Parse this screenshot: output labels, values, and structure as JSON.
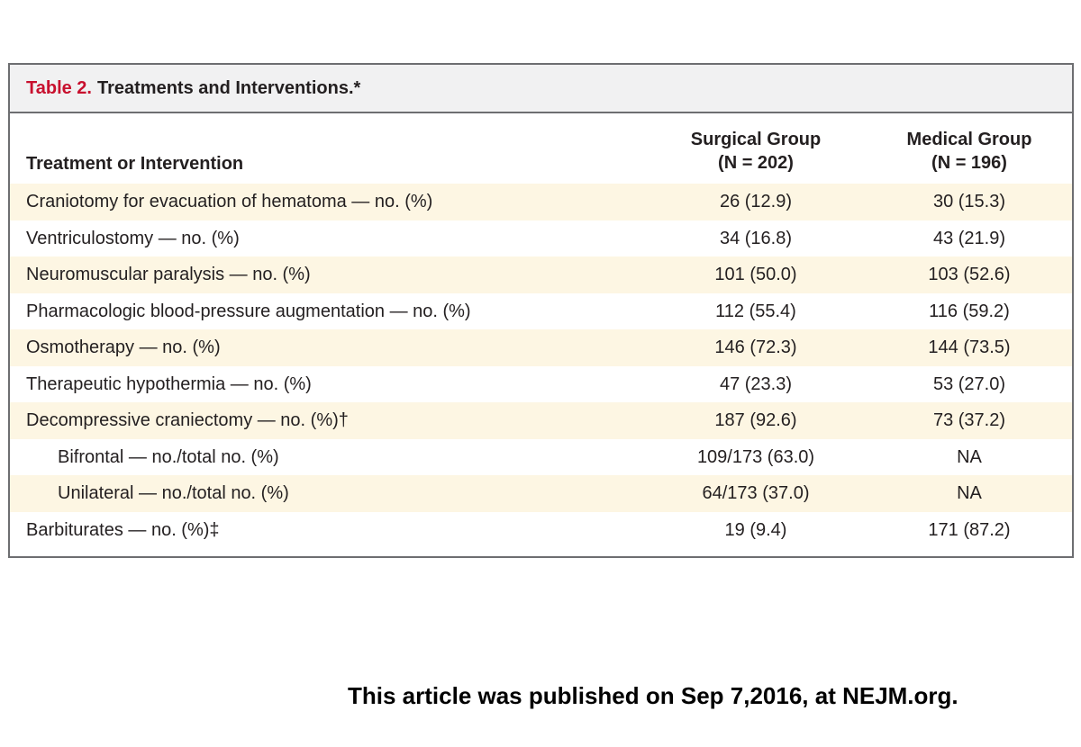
{
  "table": {
    "title_number": "Table 2.",
    "title_text": "Treatments and Interventions.*",
    "header": {
      "label": "Treatment or Intervention",
      "surgical_line1": "Surgical Group",
      "surgical_line2": "(N = 202)",
      "medical_line1": "Medical Group",
      "medical_line2": "(N = 196)"
    },
    "rows": [
      {
        "label": "Craniotomy for evacuation of hematoma — no. (%)",
        "surgical": "26 (12.9)",
        "medical": "30 (15.3)"
      },
      {
        "label": "Ventriculostomy — no. (%)",
        "surgical": "34 (16.8)",
        "medical": "43 (21.9)"
      },
      {
        "label": "Neuromuscular paralysis — no. (%)",
        "surgical": "101 (50.0)",
        "medical": "103 (52.6)"
      },
      {
        "label": "Pharmacologic blood-pressure augmentation — no. (%)",
        "surgical": "112 (55.4)",
        "medical": "116 (59.2)"
      },
      {
        "label": "Osmotherapy — no. (%)",
        "surgical": "146 (72.3)",
        "medical": "144 (73.5)"
      },
      {
        "label": "Therapeutic hypothermia — no. (%)",
        "surgical": "47 (23.3)",
        "medical": "53 (27.0)"
      },
      {
        "label": "Decompressive craniectomy — no. (%)†",
        "surgical": "187 (92.6)",
        "medical": "73 (37.2)"
      },
      {
        "label": "Bifrontal — no./total no. (%)",
        "surgical": "109/173 (63.0)",
        "medical": "NA"
      },
      {
        "label": "Unilateral — no./total no. (%)",
        "surgical": "64/173 (37.0)",
        "medical": "NA"
      },
      {
        "label": "Barbiturates — no. (%)‡",
        "surgical": "19 (9.4)",
        "medical": "171 (87.2)"
      }
    ]
  },
  "footer_note": "This article was published on Sep 7,2016, at NEJM.org."
}
